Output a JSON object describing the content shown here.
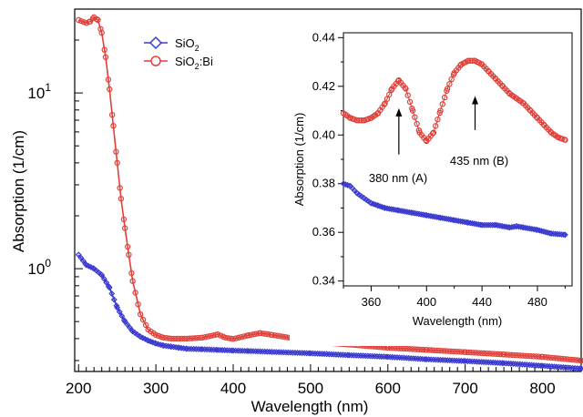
{
  "chart_data": [
    {
      "type": "scatter",
      "scale_y": "log",
      "xlabel": "Wavelength (nm)",
      "ylabel": "Absorption (1/cm)",
      "xlim": [
        195,
        850
      ],
      "ylim": [
        0.26,
        30
      ],
      "x_ticks": [
        200,
        300,
        400,
        500,
        600,
        700,
        800
      ],
      "y_ticks": [
        {
          "value": 1,
          "label": "10",
          "exp": "0"
        },
        {
          "value": 10,
          "label": "10",
          "exp": "1"
        }
      ],
      "legend": {
        "position": "top-center",
        "entries": [
          {
            "base": "SiO",
            "sub": "2",
            "rest": "",
            "color": "#3a3ad0",
            "marker": "diamond"
          },
          {
            "base": "SiO",
            "sub": "2",
            "rest": ":Bi",
            "color": "#e0403a",
            "marker": "circle"
          }
        ]
      },
      "series": [
        {
          "color": "#3a3ad0",
          "marker": "diamond",
          "x": [
            200,
            210,
            220,
            230,
            240,
            250,
            260,
            270,
            280,
            290,
            300,
            310,
            320,
            330,
            340,
            360,
            380,
            400,
            420,
            450,
            500,
            550,
            600,
            650,
            700,
            750,
            800,
            850
          ],
          "y": [
            1.2,
            1.05,
            1.0,
            0.92,
            0.78,
            0.6,
            0.5,
            0.44,
            0.41,
            0.39,
            0.375,
            0.365,
            0.36,
            0.355,
            0.35,
            0.348,
            0.345,
            0.342,
            0.34,
            0.336,
            0.33,
            0.322,
            0.315,
            0.305,
            0.298,
            0.29,
            0.28,
            0.27
          ]
        },
        {
          "color": "#e0403a",
          "marker": "circle",
          "x": [
            200,
            210,
            215,
            220,
            225,
            230,
            235,
            240,
            245,
            250,
            255,
            260,
            265,
            270,
            280,
            290,
            300,
            310,
            320,
            330,
            340,
            360,
            380,
            390,
            400,
            420,
            435,
            450,
            480,
            500,
            550,
            600,
            650,
            700,
            750,
            800,
            850
          ],
          "y": [
            26,
            25,
            25.5,
            27,
            26,
            22,
            16,
            10.5,
            6.5,
            4,
            2.5,
            1.7,
            1.2,
            0.85,
            0.55,
            0.45,
            0.42,
            0.405,
            0.4,
            0.4,
            0.4,
            0.405,
            0.423,
            0.405,
            0.398,
            0.418,
            0.43,
            0.42,
            0.4,
            0.385,
            0.37,
            0.355,
            0.345,
            0.335,
            0.325,
            0.315,
            0.3
          ]
        }
      ]
    },
    {
      "type": "scatter",
      "xlabel": "Wavelength (nm)",
      "ylabel": "Absorption (1/cm)",
      "xlim": [
        340,
        505
      ],
      "ylim": [
        0.338,
        0.442
      ],
      "x_ticks": [
        360,
        400,
        440,
        480
      ],
      "y_ticks": [
        0.34,
        0.36,
        0.38,
        0.4,
        0.42,
        0.44
      ],
      "series": [
        {
          "color": "#e0403a",
          "marker": "circle",
          "x": [
            340,
            345,
            350,
            355,
            360,
            365,
            370,
            375,
            380,
            385,
            390,
            395,
            400,
            405,
            410,
            415,
            420,
            425,
            430,
            435,
            440,
            445,
            450,
            455,
            460,
            465,
            470,
            475,
            480,
            485,
            490,
            495,
            500
          ],
          "y": [
            0.409,
            0.407,
            0.406,
            0.406,
            0.407,
            0.409,
            0.413,
            0.419,
            0.4225,
            0.419,
            0.41,
            0.401,
            0.3975,
            0.401,
            0.41,
            0.419,
            0.4255,
            0.429,
            0.4305,
            0.4305,
            0.429,
            0.426,
            0.423,
            0.42,
            0.417,
            0.415,
            0.413,
            0.41,
            0.407,
            0.404,
            0.401,
            0.399,
            0.398
          ]
        },
        {
          "color": "#3a3ad0",
          "marker": "diamond",
          "x": [
            340,
            345,
            350,
            355,
            360,
            365,
            370,
            380,
            390,
            400,
            410,
            420,
            430,
            440,
            450,
            460,
            465,
            470,
            480,
            490,
            500
          ],
          "y": [
            0.38,
            0.379,
            0.376,
            0.374,
            0.372,
            0.371,
            0.37,
            0.369,
            0.368,
            0.367,
            0.366,
            0.365,
            0.364,
            0.363,
            0.363,
            0.362,
            0.3625,
            0.362,
            0.361,
            0.3595,
            0.359
          ]
        }
      ],
      "annotations": [
        {
          "text": "380 nm (A)",
          "arrow_x": 380
        },
        {
          "text": "435 nm (B)",
          "arrow_x": 435
        }
      ]
    }
  ]
}
